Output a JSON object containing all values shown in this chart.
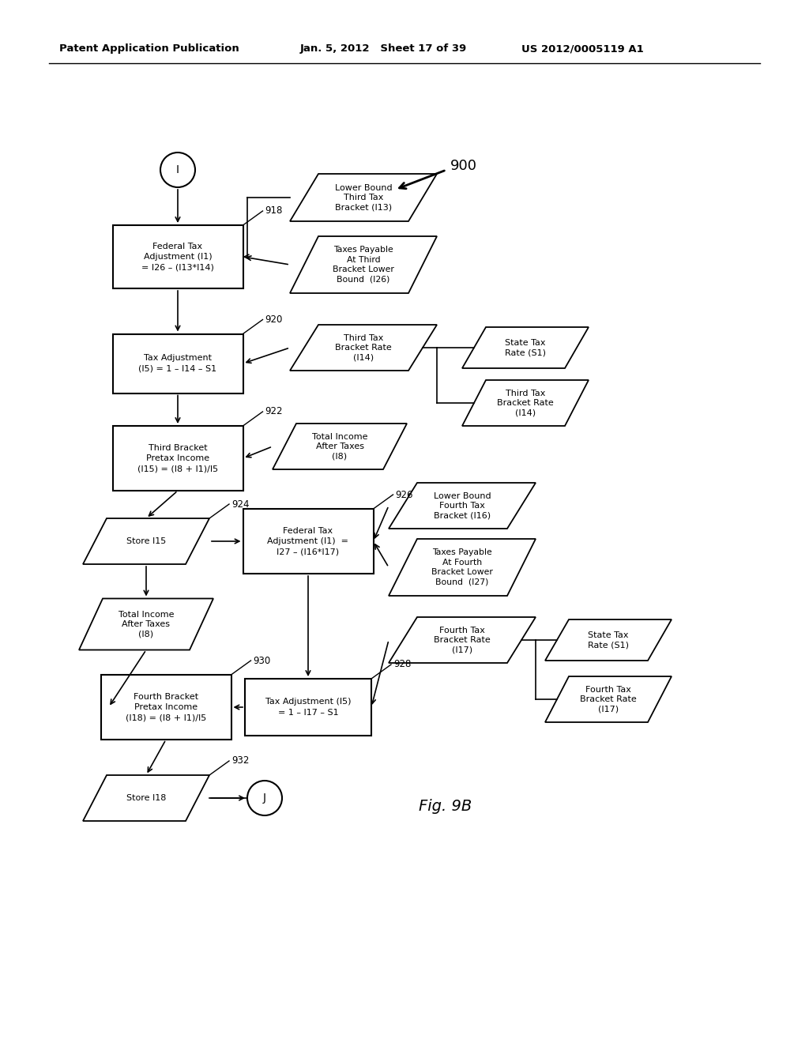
{
  "header_left": "Patent Application Publication",
  "header_mid": "Jan. 5, 2012   Sheet 17 of 39",
  "header_right": "US 2012/0005119 A1",
  "background": "#ffffff",
  "fig_label": "Fig. 9B",
  "diagram_num": "900"
}
